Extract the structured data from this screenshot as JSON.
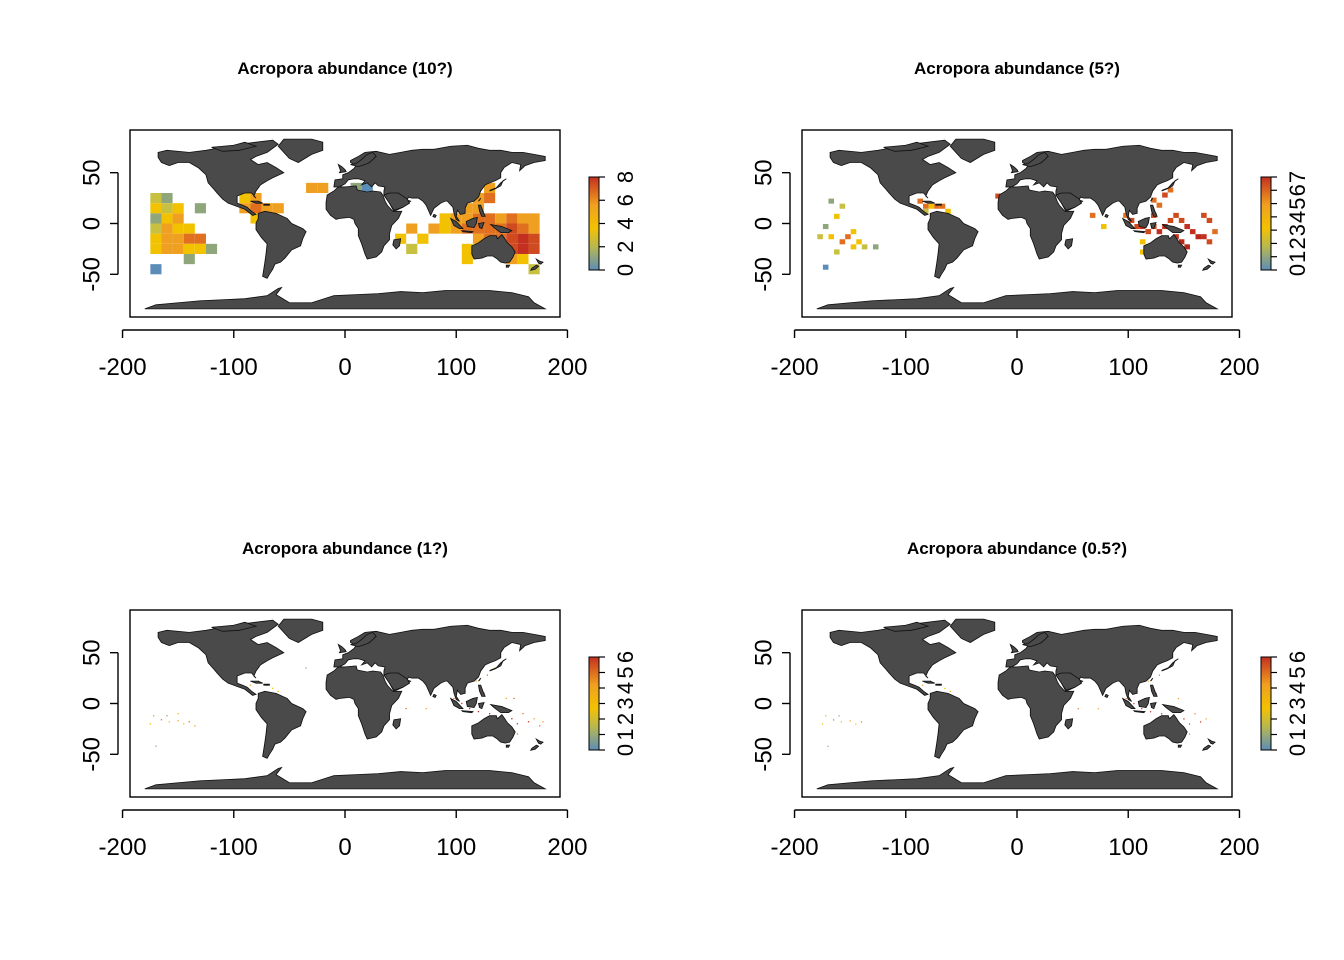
{
  "figure": {
    "panels": [
      {
        "id": "p10",
        "title": "Acropora abundance (10?)",
        "legend_ticks": [
          "0",
          "2",
          "4",
          "6",
          "8"
        ],
        "legend_max": 8,
        "cell": 10,
        "cells": [
          [
            -170,
            25,
            2
          ],
          [
            -160,
            25,
            1
          ],
          [
            -170,
            15,
            3
          ],
          [
            -160,
            15,
            2
          ],
          [
            -150,
            15,
            3
          ],
          [
            -130,
            15,
            1
          ],
          [
            -170,
            5,
            1
          ],
          [
            -160,
            5,
            3
          ],
          [
            -150,
            5,
            4
          ],
          [
            -170,
            -5,
            2
          ],
          [
            -160,
            -5,
            4
          ],
          [
            -150,
            -5,
            3
          ],
          [
            -140,
            -5,
            3
          ],
          [
            -170,
            -15,
            3
          ],
          [
            -160,
            -15,
            4
          ],
          [
            -150,
            -15,
            4
          ],
          [
            -140,
            -15,
            5
          ],
          [
            -130,
            -15,
            5
          ],
          [
            -170,
            -25,
            3
          ],
          [
            -160,
            -25,
            4
          ],
          [
            -150,
            -25,
            4
          ],
          [
            -140,
            -25,
            3
          ],
          [
            -130,
            -25,
            3
          ],
          [
            -120,
            -25,
            1
          ],
          [
            -140,
            -35,
            1
          ],
          [
            -170,
            -45,
            0
          ],
          [
            -90,
            25,
            3
          ],
          [
            -80,
            25,
            4
          ],
          [
            -90,
            15,
            4
          ],
          [
            -80,
            15,
            5
          ],
          [
            -70,
            15,
            4
          ],
          [
            -60,
            15,
            4
          ],
          [
            -80,
            5,
            3
          ],
          [
            -20,
            35,
            4
          ],
          [
            -30,
            35,
            4
          ],
          [
            10,
            35,
            1
          ],
          [
            20,
            35,
            0
          ],
          [
            40,
            35,
            1
          ],
          [
            60,
            -5,
            4
          ],
          [
            70,
            -15,
            3
          ],
          [
            60,
            -25,
            2
          ],
          [
            50,
            -15,
            3
          ],
          [
            80,
            -5,
            4
          ],
          [
            90,
            -5,
            3
          ],
          [
            90,
            5,
            3
          ],
          [
            100,
            5,
            4
          ],
          [
            110,
            5,
            4
          ],
          [
            120,
            5,
            5
          ],
          [
            110,
            15,
            4
          ],
          [
            120,
            15,
            4
          ],
          [
            120,
            25,
            4
          ],
          [
            130,
            25,
            5
          ],
          [
            130,
            35,
            4
          ],
          [
            130,
            5,
            5
          ],
          [
            140,
            5,
            4
          ],
          [
            150,
            5,
            5
          ],
          [
            160,
            5,
            4
          ],
          [
            170,
            5,
            4
          ],
          [
            140,
            -5,
            5
          ],
          [
            150,
            -5,
            6
          ],
          [
            160,
            -5,
            5
          ],
          [
            170,
            -5,
            4
          ],
          [
            120,
            -15,
            4
          ],
          [
            130,
            -15,
            5
          ],
          [
            140,
            -15,
            5
          ],
          [
            150,
            -15,
            6
          ],
          [
            160,
            -15,
            7
          ],
          [
            170,
            -15,
            6
          ],
          [
            150,
            -25,
            6
          ],
          [
            160,
            -25,
            7
          ],
          [
            170,
            -25,
            6
          ],
          [
            110,
            -25,
            3
          ],
          [
            110,
            -35,
            3
          ],
          [
            150,
            -35,
            4
          ],
          [
            160,
            -35,
            3
          ],
          [
            170,
            -45,
            2
          ],
          [
            100,
            -5,
            4
          ],
          [
            110,
            -5,
            5
          ],
          [
            120,
            -5,
            5
          ],
          [
            130,
            -5,
            5
          ]
        ]
      },
      {
        "id": "p5",
        "title": "Acropora abundance (5?)",
        "legend_ticks": [
          "0",
          "1",
          "2",
          "3",
          "4",
          "5",
          "6",
          "7"
        ],
        "legend_max": 7,
        "cell": 5,
        "cells": [
          [
            -167,
            22,
            1
          ],
          [
            -157,
            17,
            2
          ],
          [
            -162,
            7,
            3
          ],
          [
            -172,
            -3,
            1
          ],
          [
            -177,
            -13,
            2
          ],
          [
            -167,
            -13,
            3
          ],
          [
            -157,
            -18,
            4
          ],
          [
            -152,
            -13,
            4
          ],
          [
            -147,
            -23,
            3
          ],
          [
            -137,
            -23,
            2
          ],
          [
            -127,
            -23,
            1
          ],
          [
            -142,
            -18,
            3
          ],
          [
            -162,
            -28,
            2
          ],
          [
            -172,
            -43,
            0
          ],
          [
            -147,
            -8,
            3
          ],
          [
            -87,
            22,
            4
          ],
          [
            -82,
            17,
            4
          ],
          [
            -77,
            17,
            3
          ],
          [
            -72,
            17,
            4
          ],
          [
            -67,
            17,
            4
          ],
          [
            -62,
            12,
            3
          ],
          [
            -82,
            12,
            2
          ],
          [
            -17,
            27,
            5
          ],
          [
            -12,
            27,
            5
          ],
          [
            68,
            8,
            4
          ],
          [
            78,
            -3,
            3
          ],
          [
            98,
            8,
            4
          ],
          [
            103,
            3,
            5
          ],
          [
            108,
            -3,
            5
          ],
          [
            113,
            -3,
            6
          ],
          [
            118,
            -8,
            5
          ],
          [
            123,
            -3,
            5
          ],
          [
            128,
            -8,
            6
          ],
          [
            133,
            -3,
            6
          ],
          [
            138,
            3,
            5
          ],
          [
            143,
            8,
            5
          ],
          [
            148,
            3,
            5
          ],
          [
            153,
            -3,
            6
          ],
          [
            158,
            -8,
            6
          ],
          [
            163,
            -13,
            7
          ],
          [
            168,
            -13,
            6
          ],
          [
            173,
            -18,
            5
          ],
          [
            148,
            -18,
            7
          ],
          [
            153,
            -23,
            7
          ],
          [
            143,
            -13,
            6
          ],
          [
            123,
            8,
            5
          ],
          [
            128,
            18,
            4
          ],
          [
            123,
            23,
            4
          ],
          [
            133,
            28,
            5
          ],
          [
            138,
            33,
            4
          ],
          [
            113,
            -18,
            3
          ],
          [
            118,
            -23,
            4
          ],
          [
            113,
            -28,
            3
          ],
          [
            173,
            3,
            5
          ],
          [
            178,
            -8,
            4
          ],
          [
            168,
            8,
            5
          ]
        ]
      },
      {
        "id": "p1",
        "title": "Acropora abundance (1?)",
        "legend_ticks": [
          "0",
          "1",
          "2",
          "3",
          "4",
          "5",
          "6"
        ],
        "legend_max": 6,
        "cell": 1.2,
        "cells": [
          [
            -172,
            -12,
            3
          ],
          [
            -165,
            -16,
            4
          ],
          [
            -158,
            -18,
            2
          ],
          [
            -150,
            -17,
            3
          ],
          [
            -145,
            -20,
            2
          ],
          [
            -140,
            -18,
            4
          ],
          [
            -135,
            -22,
            3
          ],
          [
            -170,
            -42,
            1
          ],
          [
            -160,
            -12,
            1
          ],
          [
            -150,
            -10,
            2
          ],
          [
            -175,
            -20,
            2
          ],
          [
            -85,
            18,
            3
          ],
          [
            -78,
            22,
            4
          ],
          [
            -70,
            18,
            3
          ],
          [
            -65,
            15,
            2
          ],
          [
            -60,
            12,
            3
          ],
          [
            -82,
            10,
            2
          ],
          [
            -87,
            15,
            2
          ],
          [
            -35,
            35,
            1
          ],
          [
            35,
            -20,
            3
          ],
          [
            55,
            -5,
            4
          ],
          [
            73,
            -5,
            3
          ],
          [
            98,
            5,
            4
          ],
          [
            105,
            0,
            5
          ],
          [
            112,
            -5,
            5
          ],
          [
            120,
            -8,
            6
          ],
          [
            125,
            10,
            5
          ],
          [
            130,
            -10,
            6
          ],
          [
            138,
            -5,
            5
          ],
          [
            145,
            -8,
            6
          ],
          [
            150,
            -15,
            6
          ],
          [
            155,
            -20,
            5
          ],
          [
            160,
            -10,
            4
          ],
          [
            165,
            -18,
            5
          ],
          [
            170,
            -15,
            3
          ],
          [
            175,
            -22,
            4
          ],
          [
            145,
            5,
            3
          ],
          [
            152,
            5,
            4
          ],
          [
            118,
            22,
            3
          ],
          [
            128,
            28,
            4
          ],
          [
            135,
            35,
            3
          ],
          [
            115,
            -22,
            3
          ],
          [
            155,
            -30,
            4
          ],
          [
            168,
            -45,
            2
          ],
          [
            178,
            -18,
            3
          ]
        ]
      },
      {
        "id": "p05",
        "title": "Acropora abundance (0.5?)",
        "legend_ticks": [
          "0",
          "1",
          "2",
          "3",
          "4",
          "5",
          "6"
        ],
        "legend_max": 6,
        "cell": 0.9,
        "cells": [
          [
            -172,
            -12,
            3
          ],
          [
            -165,
            -16,
            4
          ],
          [
            -158,
            -18,
            2
          ],
          [
            -150,
            -17,
            3
          ],
          [
            -145,
            -20,
            2
          ],
          [
            -140,
            -18,
            4
          ],
          [
            -170,
            -42,
            1
          ],
          [
            -160,
            -12,
            1
          ],
          [
            -175,
            -20,
            2
          ],
          [
            -85,
            18,
            3
          ],
          [
            -78,
            22,
            4
          ],
          [
            -70,
            18,
            3
          ],
          [
            -65,
            15,
            2
          ],
          [
            -60,
            12,
            3
          ],
          [
            55,
            -5,
            4
          ],
          [
            73,
            -5,
            3
          ],
          [
            98,
            5,
            4
          ],
          [
            105,
            0,
            5
          ],
          [
            112,
            -5,
            5
          ],
          [
            120,
            -8,
            6
          ],
          [
            125,
            10,
            5
          ],
          [
            130,
            -10,
            6
          ],
          [
            138,
            -5,
            5
          ],
          [
            145,
            -8,
            6
          ],
          [
            150,
            -15,
            6
          ],
          [
            155,
            -20,
            5
          ],
          [
            160,
            -10,
            4
          ],
          [
            165,
            -18,
            5
          ],
          [
            170,
            -15,
            3
          ],
          [
            145,
            5,
            3
          ],
          [
            118,
            22,
            3
          ],
          [
            128,
            28,
            4
          ],
          [
            135,
            35,
            3
          ],
          [
            155,
            -30,
            4
          ],
          [
            168,
            -45,
            2
          ]
        ]
      }
    ],
    "xticks": [
      "-200",
      "-100",
      "0",
      "100",
      "200"
    ],
    "yticks": [
      "-50",
      "0",
      "50"
    ],
    "palette": [
      "#5b8db8",
      "#8fa67a",
      "#c8c040",
      "#f2c200",
      "#f0a020",
      "#e07020",
      "#d04a20",
      "#c43020",
      "#b82818"
    ]
  }
}
